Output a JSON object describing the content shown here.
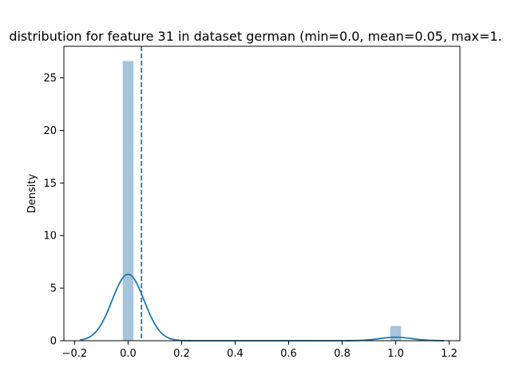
{
  "chart_data": {
    "type": "bar",
    "title": "distribution for feature 31 in dataset german (min=0.0, mean=0.05, max=1.",
    "xlabel": "",
    "ylabel": "Density",
    "xlim": [
      -0.24,
      1.24
    ],
    "ylim": [
      0,
      28
    ],
    "x_ticks": [
      -0.2,
      0.0,
      0.2,
      0.4,
      0.6,
      0.8,
      1.0,
      1.2
    ],
    "x_tick_labels": [
      "−0.2",
      "0.0",
      "0.2",
      "0.4",
      "0.6",
      "0.8",
      "1.0",
      "1.2"
    ],
    "y_ticks": [
      0,
      5,
      10,
      15,
      20,
      25
    ],
    "y_tick_labels": [
      "0",
      "5",
      "10",
      "15",
      "20",
      "25"
    ],
    "histogram": {
      "bin_width": 0.04,
      "bins": [
        {
          "x0": -0.02,
          "x1": 0.02,
          "density": 26.6
        },
        {
          "x0": 0.98,
          "x1": 1.02,
          "density": 1.4
        }
      ],
      "color": "#a6c4dc"
    },
    "kde": {
      "color": "#1f77b4",
      "bandwidth": 0.06,
      "x_range": [
        -0.18,
        1.18
      ],
      "components": [
        {
          "center": 0.0,
          "weight": 0.95
        },
        {
          "center": 1.0,
          "weight": 0.05
        }
      ]
    },
    "mean_line": {
      "x": 0.05,
      "style": "dashed",
      "color": "#1f77b4"
    },
    "grid": false,
    "legend": "none"
  }
}
